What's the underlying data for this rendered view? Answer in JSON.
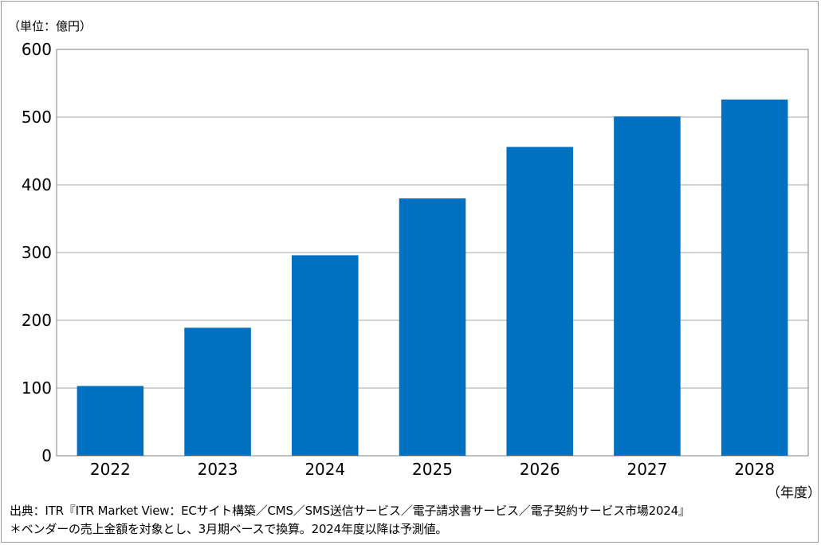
{
  "unit_label": "（単位：億円）",
  "fiscal_year_label": "（年度）",
  "source_note": "出典：ITR『ITR Market View：ECサイト構築／CMS／SMS送信サービス／電子請求書サービス／電子契約サービス市場2024』",
  "footnote": "＊ベンダーの売上金額を対象とし、3月期ベースで換算。2024年度以降は予測値。",
  "colors": {
    "bar": "#0070c0",
    "grid": "#a6a6a6",
    "axis": "#808080"
  },
  "chart_data": {
    "type": "bar",
    "categories": [
      "2022",
      "2023",
      "2024",
      "2025",
      "2026",
      "2027",
      "2028"
    ],
    "values": [
      103,
      189,
      296,
      380,
      456,
      501,
      526
    ],
    "ylim": [
      0,
      600
    ],
    "yticks": [
      "0",
      "100",
      "200",
      "300",
      "400",
      "500",
      "600"
    ],
    "grid": true
  }
}
